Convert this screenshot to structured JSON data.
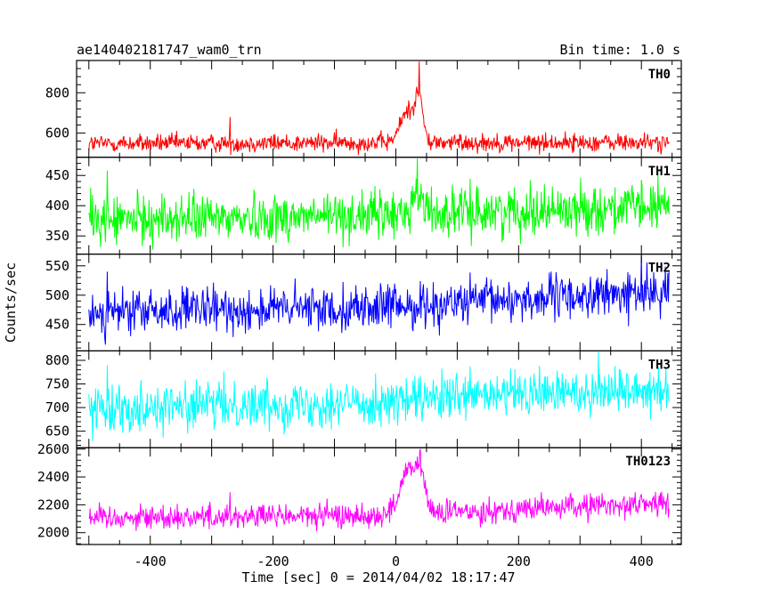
{
  "chart_data": {
    "type": "line",
    "title": "ae140402181747_wam0_trn",
    "subtitle": "Bin time: 1.0 s",
    "xlabel": "Time [sec] 0 = 2014/04/02 18:17:47",
    "ylabel": "Counts/sec",
    "xlim": [
      -520,
      465
    ],
    "xticks": [
      -400,
      -200,
      0,
      200,
      400
    ],
    "x_range": [
      -500,
      445
    ],
    "grid": false,
    "panels": [
      {
        "name": "TH0",
        "color": "#ff0000",
        "ylim": [
          480,
          960
        ],
        "yticks": [
          600,
          800
        ],
        "baseline": [
          [
            -500,
            548
          ],
          [
            -300,
            550
          ],
          [
            0,
            553
          ],
          [
            200,
            553
          ],
          [
            445,
            553
          ]
        ],
        "noise": 23,
        "bumps": [
          {
            "center": 20,
            "width": 12,
            "height": 160
          },
          {
            "center": 38,
            "width": 6,
            "height": 200
          }
        ],
        "spikes": [
          {
            "x": -270,
            "value": 680
          },
          {
            "x": 38,
            "value": 955
          }
        ]
      },
      {
        "name": "TH1",
        "color": "#00ff00",
        "ylim": [
          320,
          480
        ],
        "yticks": [
          350,
          400,
          450
        ],
        "baseline": [
          [
            -500,
            376
          ],
          [
            0,
            385
          ],
          [
            200,
            392
          ],
          [
            445,
            398
          ]
        ],
        "noise": 20,
        "bumps": [
          {
            "center": 35,
            "width": 10,
            "height": 30
          }
        ],
        "spikes": [
          {
            "x": -470,
            "value": 458
          },
          {
            "x": 35,
            "value": 478
          }
        ]
      },
      {
        "name": "TH2",
        "color": "#0000ff",
        "ylim": [
          405,
          570
        ],
        "yticks": [
          450,
          500,
          550
        ],
        "baseline": [
          [
            -500,
            470
          ],
          [
            0,
            480
          ],
          [
            200,
            493
          ],
          [
            445,
            505
          ]
        ],
        "noise": 19,
        "bumps": [],
        "spikes": [
          {
            "x": -470,
            "value": 540
          },
          {
            "x": 400,
            "value": 568
          }
        ]
      },
      {
        "name": "TH3",
        "color": "#00ffff",
        "ylim": [
          615,
          820
        ],
        "yticks": [
          650,
          700,
          750,
          800
        ],
        "baseline": [
          [
            -500,
            700
          ],
          [
            0,
            712
          ],
          [
            200,
            728
          ],
          [
            445,
            742
          ]
        ],
        "noise": 25,
        "bumps": [],
        "spikes": [
          {
            "x": -470,
            "value": 790
          },
          {
            "x": 330,
            "value": 818
          }
        ]
      },
      {
        "name": "TH0123",
        "color": "#ff00ff",
        "ylim": [
          1915,
          2610
        ],
        "yticks": [
          2000,
          2200,
          2400,
          2600
        ],
        "baseline": [
          [
            -500,
            2110
          ],
          [
            -300,
            2115
          ],
          [
            0,
            2125
          ],
          [
            200,
            2170
          ],
          [
            445,
            2215
          ]
        ],
        "noise": 45,
        "bumps": [
          {
            "center": 20,
            "width": 14,
            "height": 290
          },
          {
            "center": 40,
            "width": 8,
            "height": 250
          }
        ],
        "spikes": [
          {
            "x": -270,
            "value": 2290
          },
          {
            "x": 40,
            "value": 2600
          }
        ]
      }
    ]
  }
}
